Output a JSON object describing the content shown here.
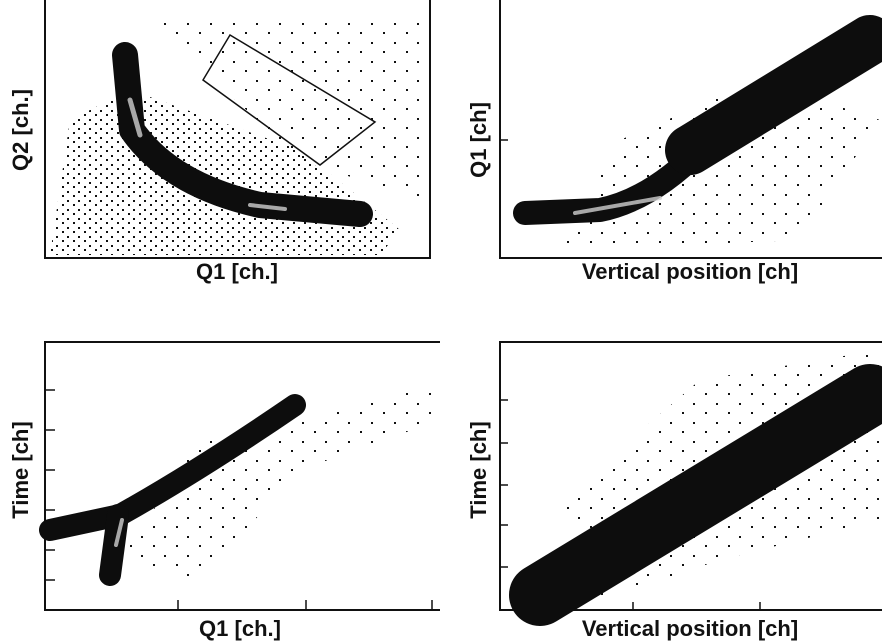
{
  "panels": [
    {
      "xlabel": "Q1 [ch.]",
      "ylabel": "Q2 [ch.]"
    },
    {
      "xlabel": "Vertical position [ch]",
      "ylabel": "Q1 [ch]"
    },
    {
      "xlabel": "Q1 [ch.]",
      "ylabel": "Time [ch]"
    },
    {
      "xlabel": "Vertical position [ch]",
      "ylabel": "Time [ch]"
    }
  ]
}
